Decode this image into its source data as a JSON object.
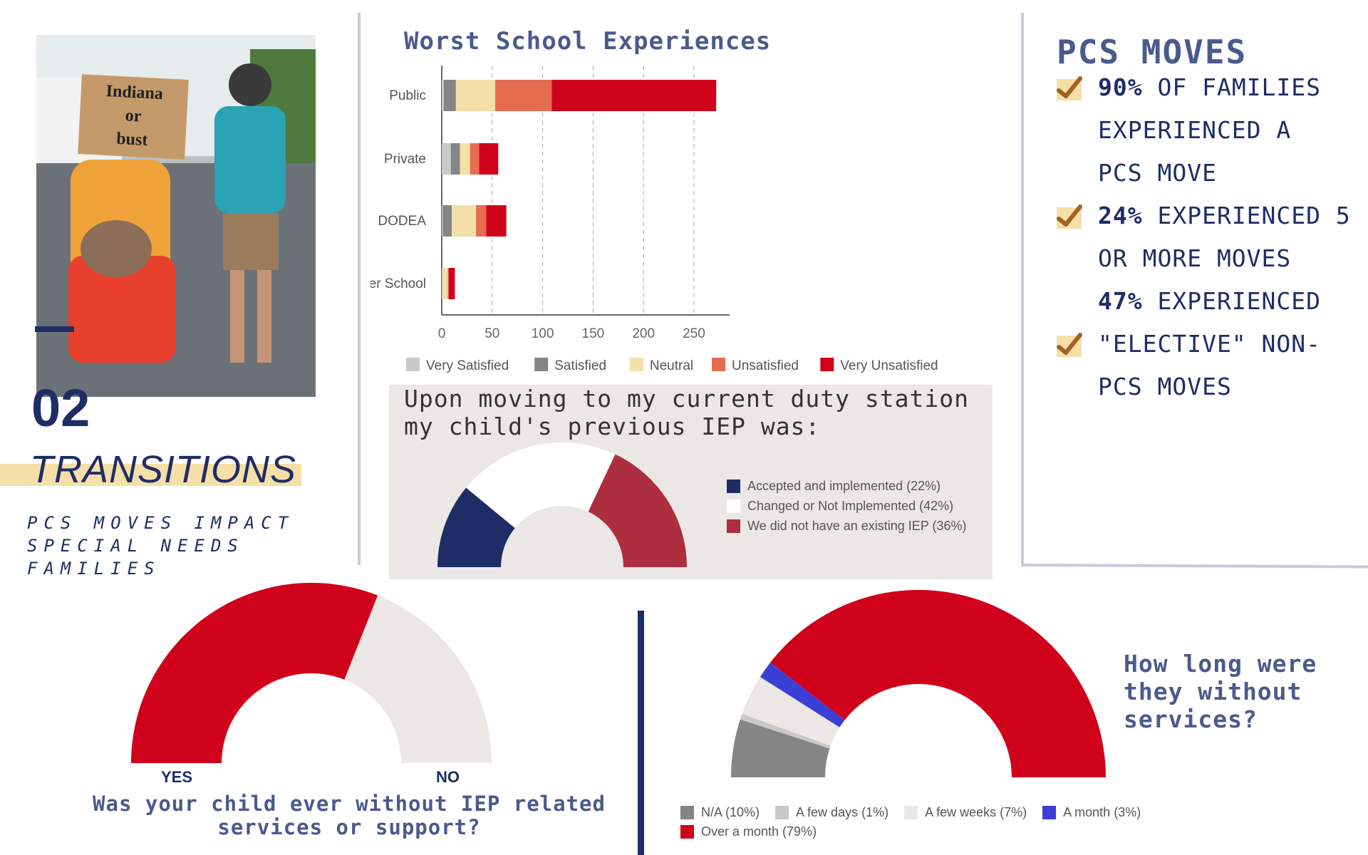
{
  "section": {
    "number": "02",
    "title": "TRANSITIONS",
    "subtitle": "PCS MOVES IMPACT\nSPECIAL NEEDS\nFAMILIES"
  },
  "photo": {
    "sign_text": [
      "Indiana",
      "or",
      "bust"
    ]
  },
  "pcs": {
    "title": "PCS MOVES",
    "lines": [
      {
        "bold": "90%",
        "text": " OF FAMILIES",
        "check": true
      },
      {
        "bold": "",
        "text": "EXPERIENCED A",
        "check": false
      },
      {
        "bold": "",
        "text": "PCS MOVE",
        "check": false
      },
      {
        "bold": "24%",
        "text": " EXPERIENCED 5",
        "check": true
      },
      {
        "bold": "",
        "text": "OR MORE MOVES",
        "check": false
      },
      {
        "bold": "47%",
        "text": " EXPERIENCED",
        "check": false
      },
      {
        "bold": "",
        "text": "\"ELECTIVE\" NON-",
        "check": true
      },
      {
        "bold": "",
        "text": "PCS MOVES",
        "check": false
      }
    ],
    "check_color": "#a65f1e"
  },
  "chart_data": [
    {
      "type": "bar",
      "orientation": "horizontal",
      "stacked": true,
      "title": "Worst School Experiences",
      "categories": [
        "Public",
        "Private",
        "DODEA",
        "Charter School"
      ],
      "xlim": [
        0,
        285
      ],
      "xticks": [
        "0",
        "50",
        "100",
        "150",
        "200",
        "250"
      ],
      "grid": "vertical dashed",
      "legend": "bottom",
      "series": [
        {
          "name": "Very Satisfied",
          "color": "#c8c8c8",
          "values": [
            2,
            9,
            1,
            1
          ]
        },
        {
          "name": "Satisfied",
          "color": "#858585",
          "values": [
            12,
            9,
            9,
            0
          ]
        },
        {
          "name": "Neutral",
          "color": "#f5dfa8",
          "values": [
            39,
            10,
            24,
            5
          ]
        },
        {
          "name": "Unsatisfied",
          "color": "#e56c4e",
          "values": [
            56,
            9,
            10,
            1
          ]
        },
        {
          "name": "Very Unsatisfied",
          "color": "#d0021b",
          "values": [
            163,
            19,
            20,
            6
          ]
        }
      ]
    },
    {
      "type": "pie",
      "variant": "half-donut",
      "title": "Upon moving to my current duty station my child's previous IEP was:",
      "legend": "right",
      "slices": [
        {
          "label": "Accepted and implemented (22%)",
          "value": 22,
          "color": "#1e2d66"
        },
        {
          "label": "Changed or Not Implemented (42%)",
          "value": 42,
          "color": "#ffffff"
        },
        {
          "label": "We did not have an existing IEP (36%)",
          "value": 36,
          "color": "#ad2e3e"
        }
      ]
    },
    {
      "type": "pie",
      "variant": "half-donut",
      "title": "Was your child ever without IEP related services or support?",
      "slices": [
        {
          "label": "YES",
          "value": 62,
          "color": "#d0021b"
        },
        {
          "label": "NO",
          "value": 38,
          "color": "#ebe7e5"
        }
      ]
    },
    {
      "type": "pie",
      "variant": "half-donut",
      "title": "How long were they without services?",
      "legend": "bottom",
      "slices": [
        {
          "label": "N/A (10%)",
          "value": 10,
          "color": "#858585"
        },
        {
          "label": "A few days (1%)",
          "value": 1,
          "color": "#c8c8c8"
        },
        {
          "label": "A few weeks (7%)",
          "value": 7,
          "color": "#ebe7e5"
        },
        {
          "label": "A month (3%)",
          "value": 3,
          "color": "#3a3fd6"
        },
        {
          "label": "Over a month (79%)",
          "value": 79,
          "color": "#d0021b"
        }
      ]
    }
  ]
}
